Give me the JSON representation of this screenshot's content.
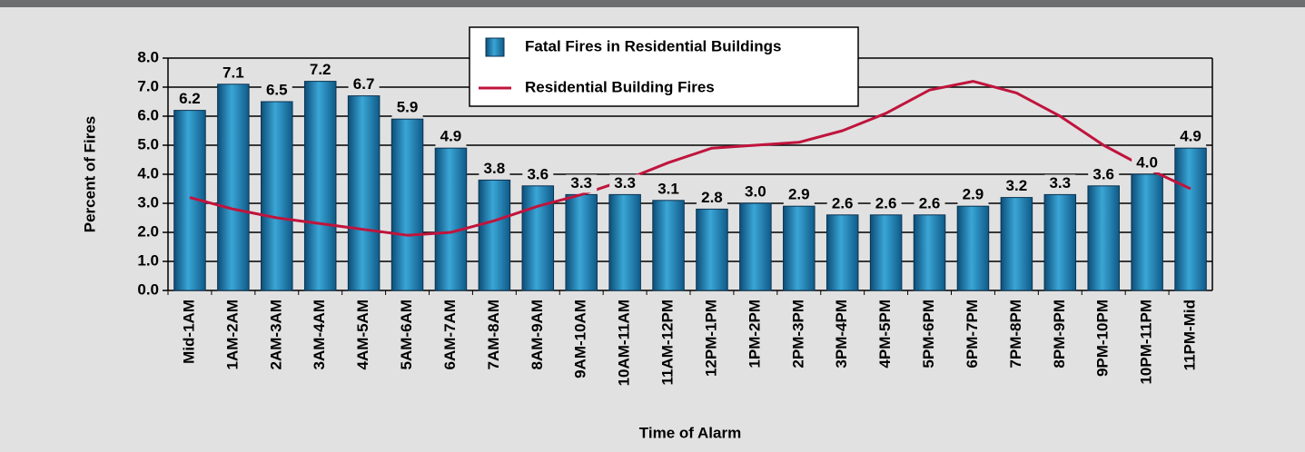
{
  "chart_data": {
    "type": "bar",
    "x_label": "Time of Alarm",
    "y_label": "Percent of Fires",
    "categories": [
      "Mid-1AM",
      "1AM-2AM",
      "2AM-3AM",
      "3AM-4AM",
      "4AM-5AM",
      "5AM-6AM",
      "6AM-7AM",
      "7AM-8AM",
      "8AM-9AM",
      "9AM-10AM",
      "10AM-11AM",
      "11AM-12PM",
      "12PM-1PM",
      "1PM-2PM",
      "2PM-3PM",
      "3PM-4PM",
      "4PM-5PM",
      "5PM-6PM",
      "6PM-7PM",
      "7PM-8PM",
      "8PM-9PM",
      "9PM-10PM",
      "10PM-11PM",
      "11PM-Mid"
    ],
    "series": [
      {
        "name": "Fatal Fires in Residential Buildings",
        "type": "bar",
        "color": "#3aa6d6",
        "values": [
          6.2,
          7.1,
          6.5,
          7.2,
          6.7,
          5.9,
          4.9,
          3.8,
          3.6,
          3.3,
          3.3,
          3.1,
          2.8,
          3.0,
          2.9,
          2.6,
          2.6,
          2.6,
          2.9,
          3.2,
          3.3,
          3.6,
          4.0,
          4.9
        ],
        "value_labels": [
          "6.2",
          "7.1",
          "6.5",
          "7.2",
          "6.7",
          "5.9",
          "4.9",
          "3.8",
          "3.6",
          "3.3",
          "3.3",
          "3.1",
          "2.8",
          "3.0",
          "2.9",
          "2.6",
          "2.6",
          "2.6",
          "2.9",
          "3.2",
          "3.3",
          "3.6",
          "4.0",
          "4.9"
        ]
      },
      {
        "name": "Residential Building Fires",
        "type": "line",
        "color": "#c0143c",
        "values": [
          3.2,
          2.8,
          2.5,
          2.3,
          2.1,
          1.9,
          2.0,
          2.4,
          2.9,
          3.3,
          3.8,
          4.4,
          4.9,
          5.0,
          5.1,
          5.5,
          6.1,
          6.9,
          7.2,
          6.8,
          6.0,
          5.0,
          4.2,
          3.5
        ]
      }
    ],
    "ylim": [
      0,
      8
    ],
    "yticks": [
      {
        "value": 0,
        "label": "0.0"
      },
      {
        "value": 1,
        "label": "1.0"
      },
      {
        "value": 2,
        "label": "2.0"
      },
      {
        "value": 3,
        "label": "3.0"
      },
      {
        "value": 4,
        "label": "4.0"
      },
      {
        "value": 5,
        "label": "5.0"
      },
      {
        "value": 6,
        "label": "6.0"
      },
      {
        "value": 7,
        "label": "7.0"
      },
      {
        "value": 8,
        "label": "8.0"
      }
    ],
    "grid": true
  }
}
